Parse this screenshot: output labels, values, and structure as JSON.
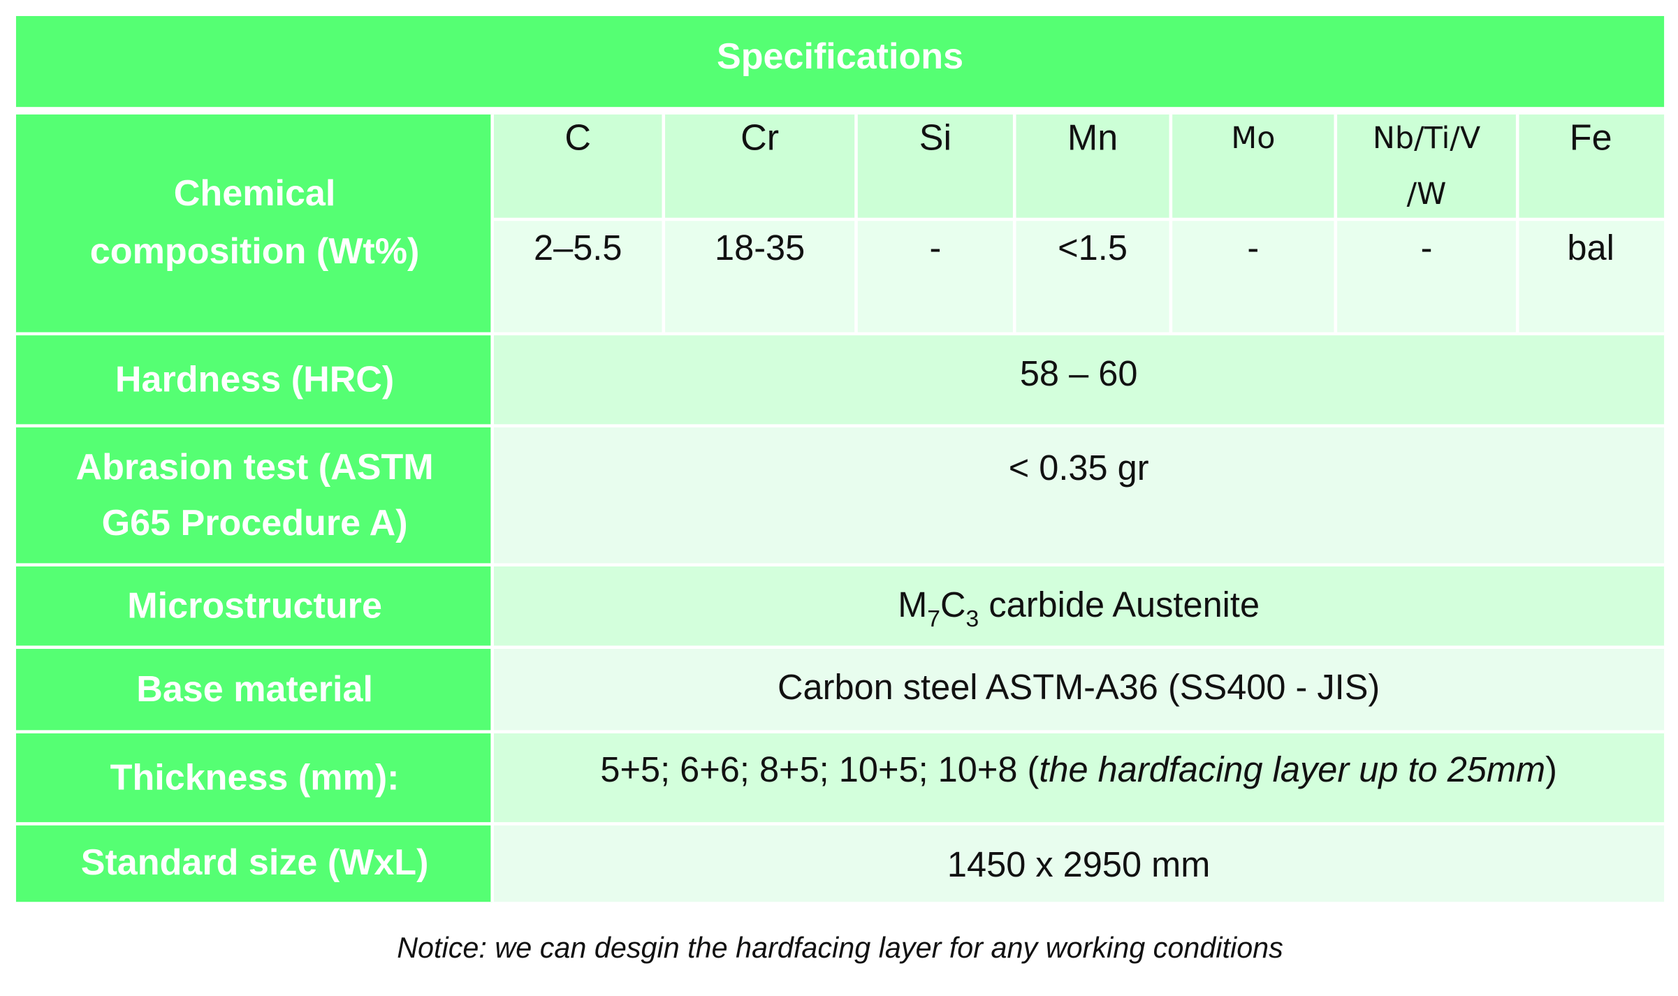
{
  "header": {
    "title": "Specifications"
  },
  "chemical_composition": {
    "label_lines": [
      "Chemical",
      "composition (Wt%)"
    ],
    "elements": [
      [
        "C"
      ],
      [
        "Cr"
      ],
      [
        "Si"
      ],
      [
        "Mn"
      ],
      [
        "Mo"
      ],
      [
        "Nb/Ti/V",
        "/W"
      ],
      [
        "Fe"
      ]
    ],
    "values": [
      "2–5.5",
      "18-35",
      "-",
      "<1.5",
      "-",
      "-",
      "bal"
    ]
  },
  "rows": [
    {
      "label_lines": [
        "Hardness (HRC)"
      ],
      "value_parts": [
        "58 – 60"
      ]
    },
    {
      "label_lines": [
        "Abrasion test (ASTM",
        "G65 Procedure A)"
      ],
      "value_parts": [
        "< 0.35 gr"
      ]
    },
    {
      "label_lines": [
        "Microstructure"
      ],
      "value_parts": [
        "M",
        "7",
        "C",
        "3",
        " carbide Austenite"
      ]
    },
    {
      "label_lines": [
        "Base  material"
      ],
      "value_parts": [
        "Carbon steel ASTM-A36 (SS400 - JIS)"
      ]
    },
    {
      "label_lines": [
        "Thickness (mm):"
      ],
      "value_parts": [
        "5+5; 6+6; 8+5; 10+5; 10+8 (",
        "the hardfacing layer up to 25mm",
        ")"
      ]
    },
    {
      "label_lines": [
        "Standard size (WxL)"
      ],
      "value_parts": [
        "1450 x 2950 mm"
      ]
    }
  ],
  "notice": "Notice: we can desgin the hardfacing layer for any working conditions"
}
